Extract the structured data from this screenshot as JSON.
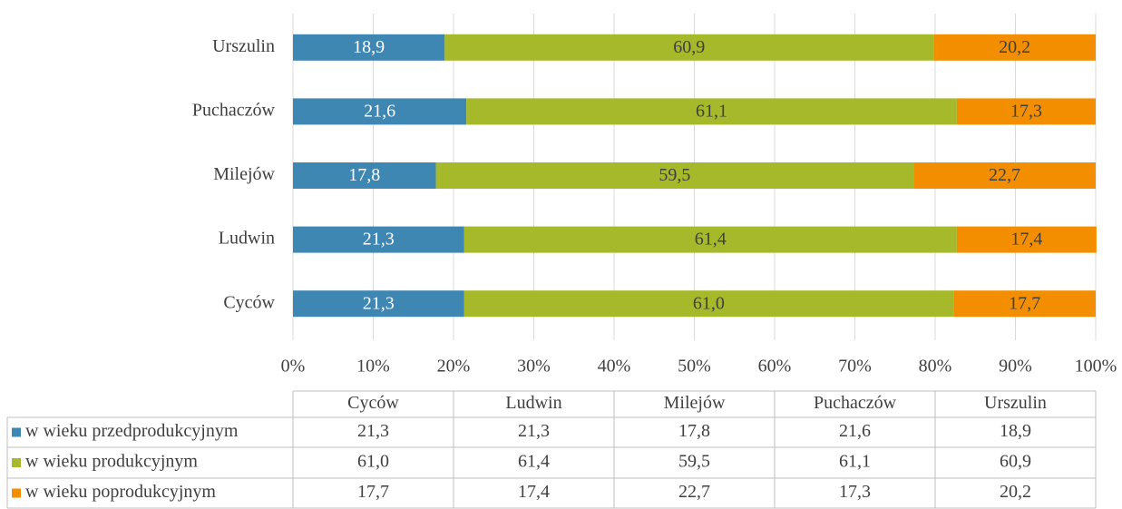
{
  "chart_data": {
    "type": "bar",
    "orientation": "horizontal",
    "stacked": true,
    "categories": [
      "Cyców",
      "Ludwin",
      "Milejów",
      "Puchaczów",
      "Urszulin"
    ],
    "series": [
      {
        "name": "w wieku przedprodukcyjnym",
        "color": "#3f87b3",
        "values": [
          21.3,
          21.3,
          17.8,
          21.6,
          18.9
        ],
        "value_labels": [
          "21,3",
          "21,3",
          "17,8",
          "21,6",
          "18,9"
        ]
      },
      {
        "name": "w wieku produkcyjnym",
        "color": "#a5b92b",
        "values": [
          61.0,
          61.4,
          59.5,
          61.1,
          60.9
        ],
        "value_labels": [
          "61,0",
          "61,4",
          "59,5",
          "61,1",
          "60,9"
        ]
      },
      {
        "name": "w wieku poprodukcyjnym",
        "color": "#f28e00",
        "values": [
          17.7,
          17.4,
          22.7,
          17.3,
          20.2
        ],
        "value_labels": [
          "17,7",
          "17,4",
          "22,7",
          "17,3",
          "20,2"
        ]
      }
    ],
    "xlim": [
      0,
      100
    ],
    "xticks": [
      {
        "value": 0,
        "label": "0%"
      },
      {
        "value": 10,
        "label": "10%"
      },
      {
        "value": 20,
        "label": "20%"
      },
      {
        "value": 30,
        "label": "30%"
      },
      {
        "value": 40,
        "label": "40%"
      },
      {
        "value": 50,
        "label": "50%"
      },
      {
        "value": 60,
        "label": "60%"
      },
      {
        "value": 70,
        "label": "70%"
      },
      {
        "value": 80,
        "label": "80%"
      },
      {
        "value": 90,
        "label": "90%"
      },
      {
        "value": 100,
        "label": "100%"
      }
    ],
    "grid": true
  }
}
